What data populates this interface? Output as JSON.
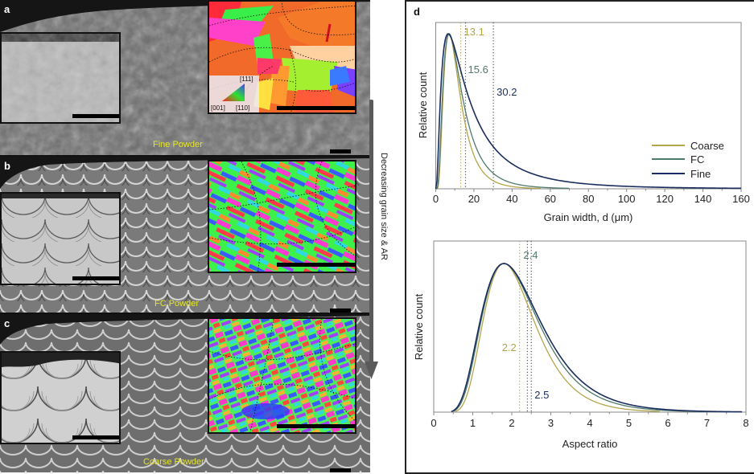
{
  "panels": {
    "a": {
      "letter": "a",
      "label": "Fine Powder"
    },
    "b": {
      "letter": "b",
      "label": "FC Powder"
    },
    "c": {
      "letter": "c",
      "label": "Coarse Powder"
    },
    "ipf_legend": {
      "top": "[111]",
      "left": "[001]",
      "right": "[110]"
    },
    "arrow_label": "Decreasing grain size & AR",
    "d_letter": "d"
  },
  "colors": {
    "coarse": "#b3a64a",
    "fc": "#4f7a6d",
    "fine": "#1a2d5e",
    "label_yellow": "#e6e62a"
  },
  "chart_data": [
    {
      "type": "line",
      "title": "",
      "xlabel": "Grain width, d (μm)",
      "ylabel": "Relative count",
      "xlim": [
        0,
        160
      ],
      "xticks": [
        "0",
        "20",
        "40",
        "60",
        "80",
        "100",
        "120",
        "140",
        "160"
      ],
      "xtick_values": [
        0,
        20,
        40,
        60,
        80,
        100,
        120,
        140,
        160
      ],
      "legend": {
        "position": "right",
        "entries": [
          "Coarse",
          "FC",
          "Fine"
        ]
      },
      "series": [
        {
          "name": "Coarse",
          "color": "#b3a64a",
          "mean": 13.1,
          "mean_label": "13.1",
          "mode": 7,
          "x_end": 55,
          "shape": "lognormal",
          "sigma": 0.6
        },
        {
          "name": "FC",
          "color": "#4f7a6d",
          "mean": 15.6,
          "mean_label": "15.6",
          "mode": 7,
          "x_end": 70,
          "shape": "lognormal",
          "sigma": 0.68
        },
        {
          "name": "Fine",
          "color": "#1a2d5e",
          "mean": 30.2,
          "mean_label": "30.2",
          "mode": 6.5,
          "x_end": 160,
          "shape": "lognormal",
          "sigma": 0.95
        }
      ]
    },
    {
      "type": "line",
      "title": "",
      "xlabel": "Aspect ratio",
      "ylabel": "Relative count",
      "xlim": [
        0,
        8
      ],
      "xticks": [
        "0",
        "1",
        "2",
        "3",
        "4",
        "5",
        "6",
        "7",
        "8"
      ],
      "xtick_values": [
        0,
        1,
        2,
        3,
        4,
        5,
        6,
        7,
        8
      ],
      "series": [
        {
          "name": "Coarse",
          "color": "#b3a64a",
          "mean": 2.2,
          "mean_label": "2.2",
          "mode": 1.8,
          "x_start": 0.55,
          "x_end": 5.8,
          "sigma": 0.36
        },
        {
          "name": "FC",
          "color": "#4f7a6d",
          "mean": 2.4,
          "mean_label": "2.4",
          "mode": 1.8,
          "x_start": 0.5,
          "x_end": 7.0,
          "sigma": 0.4
        },
        {
          "name": "Fine",
          "color": "#1a2d5e",
          "mean": 2.5,
          "mean_label": "2.5",
          "mode": 1.8,
          "x_start": 0.45,
          "x_end": 7.9,
          "sigma": 0.42
        }
      ]
    }
  ]
}
